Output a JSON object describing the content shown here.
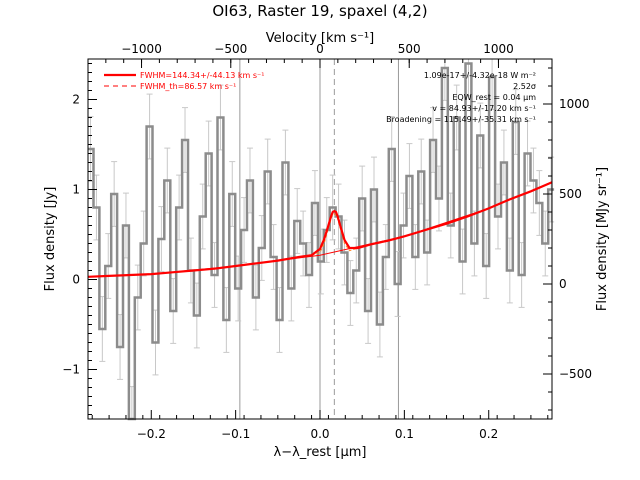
{
  "chart_data": {
    "type": "line",
    "title": "OI63, Raster 19, spaxel (4,2)",
    "xlabel": "λ−λ_rest [μm]",
    "ylabel": "Flux density [Jy]",
    "x2label": "Velocity [km s⁻¹]",
    "y2label": "Flux density [MJy sr⁻¹]",
    "xlim": [
      -0.275,
      0.275
    ],
    "ylim": [
      -1.55,
      2.45
    ],
    "x2lim": [
      -1300,
      1300
    ],
    "y2lim": [
      -750,
      1250
    ],
    "xticks": [
      -0.2,
      -0.1,
      0.0,
      0.1,
      0.2
    ],
    "xtick_labels": [
      "−0.2",
      "−0.1",
      "0.0",
      "0.1",
      "0.2"
    ],
    "yticks": [
      -1,
      0,
      1,
      2
    ],
    "ytick_labels": [
      "−1",
      "0",
      "1",
      "2"
    ],
    "x2ticks": [
      -1000,
      -500,
      0,
      500,
      1000
    ],
    "x2tick_labels": [
      "−1000",
      "−500",
      "0",
      "500",
      "1000"
    ],
    "y2ticks": [
      -500,
      0,
      500,
      1000
    ],
    "y2tick_labels": [
      "−500",
      "0",
      "500",
      "1000"
    ],
    "vlines_solid": [
      -0.095,
      0.0,
      0.093
    ],
    "vline_dashed": 0.017,
    "legend": {
      "placement": "top-left",
      "entries": [
        {
          "label": "FWHM=144.34+/-44.13 km s⁻¹",
          "style": "solid"
        },
        {
          "label": "FWHM_th=86.57 km s⁻¹",
          "style": "dashed"
        }
      ]
    },
    "annotations": [
      "1.09e-17+/-4.32e-18 W m⁻²",
      "2.52σ",
      "EQW_rest = 0.04 μm",
      "v = 84.93+/-17.20 km s⁻¹",
      "Broadening = 115.49+/-35.31 km s⁻¹"
    ],
    "spectrum": {
      "name": "data",
      "x": [
        -0.272,
        -0.265,
        -0.258,
        -0.251,
        -0.244,
        -0.237,
        -0.23,
        -0.223,
        -0.216,
        -0.209,
        -0.202,
        -0.195,
        -0.188,
        -0.181,
        -0.174,
        -0.167,
        -0.16,
        -0.153,
        -0.146,
        -0.139,
        -0.132,
        -0.125,
        -0.118,
        -0.111,
        -0.104,
        -0.097,
        -0.09,
        -0.083,
        -0.076,
        -0.069,
        -0.062,
        -0.055,
        -0.048,
        -0.041,
        -0.034,
        -0.027,
        -0.02,
        -0.013,
        -0.006,
        0.001,
        0.008,
        0.015,
        0.022,
        0.029,
        0.036,
        0.043,
        0.05,
        0.057,
        0.064,
        0.071,
        0.078,
        0.085,
        0.092,
        0.099,
        0.106,
        0.113,
        0.12,
        0.127,
        0.134,
        0.141,
        0.148,
        0.155,
        0.162,
        0.169,
        0.176,
        0.183,
        0.19,
        0.197,
        0.204,
        0.211,
        0.218,
        0.225,
        0.232,
        0.239,
        0.246,
        0.253,
        0.26,
        0.267,
        0.274
      ],
      "y": [
        1.45,
        0.8,
        -0.55,
        0.15,
        0.95,
        -0.75,
        0.6,
        -1.55,
        -0.2,
        0.4,
        1.7,
        -0.7,
        0.45,
        1.1,
        -0.35,
        0.8,
        1.55,
        0.1,
        -0.4,
        0.7,
        1.4,
        0.05,
        1.8,
        -0.45,
        0.95,
        -0.1,
        0.55,
        1.1,
        -0.2,
        0.35,
        1.2,
        0.25,
        -0.45,
        1.3,
        -0.1,
        0.65,
        0.4,
        0.05,
        0.85,
        0.2,
        0.55,
        0.8,
        0.7,
        0.3,
        -0.15,
        0.1,
        0.9,
        -0.35,
        1.0,
        -0.5,
        0.25,
        1.45,
        -0.05,
        0.6,
        1.15,
        0.25,
        1.2,
        0.3,
        1.55,
        0.9,
        2.35,
        0.6,
        1.8,
        0.2,
        2.4,
        0.4,
        1.6,
        0.15,
        2.25,
        0.7,
        1.3,
        0.1,
        1.75,
        0.05,
        1.4,
        1.1,
        0.85,
        0.4,
        1.0
      ],
      "error": 0.36
    },
    "fit": {
      "name": "fit",
      "x": [
        -0.275,
        -0.25,
        -0.225,
        -0.2,
        -0.175,
        -0.15,
        -0.125,
        -0.1,
        -0.075,
        -0.05,
        -0.025,
        -0.01,
        0.0,
        0.005,
        0.01,
        0.013,
        0.015,
        0.017,
        0.019,
        0.021,
        0.024,
        0.029,
        0.035,
        0.045,
        0.06,
        0.08,
        0.1,
        0.125,
        0.15,
        0.175,
        0.2,
        0.225,
        0.25,
        0.275
      ],
      "y": [
        0.03,
        0.04,
        0.05,
        0.06,
        0.08,
        0.1,
        0.12,
        0.15,
        0.18,
        0.21,
        0.25,
        0.27,
        0.34,
        0.45,
        0.6,
        0.7,
        0.75,
        0.76,
        0.75,
        0.7,
        0.6,
        0.44,
        0.35,
        0.35,
        0.39,
        0.43,
        0.48,
        0.55,
        0.62,
        0.7,
        0.79,
        0.89,
        0.98,
        1.08
      ]
    },
    "continuum": {
      "name": "continuum",
      "x": [
        -0.275,
        -0.2,
        -0.1,
        0.0,
        0.1,
        0.2,
        0.275
      ],
      "y": [
        0.03,
        0.06,
        0.15,
        0.27,
        0.48,
        0.79,
        1.08
      ]
    },
    "thermal_profile": {
      "name": "thermal",
      "x": [
        -0.01,
        0.0,
        0.005,
        0.01,
        0.014,
        0.017,
        0.02,
        0.024,
        0.029,
        0.035,
        0.045
      ],
      "y": [
        0.27,
        0.3,
        0.4,
        0.57,
        0.7,
        0.73,
        0.7,
        0.57,
        0.4,
        0.32,
        0.35
      ]
    },
    "colors": {
      "data": "#8c8c8c",
      "fit": "#ff0000",
      "continuum": "#ff0000",
      "thermal": "#ff8a2a",
      "vline": "#9a9a9a",
      "axis": "#000000"
    }
  }
}
